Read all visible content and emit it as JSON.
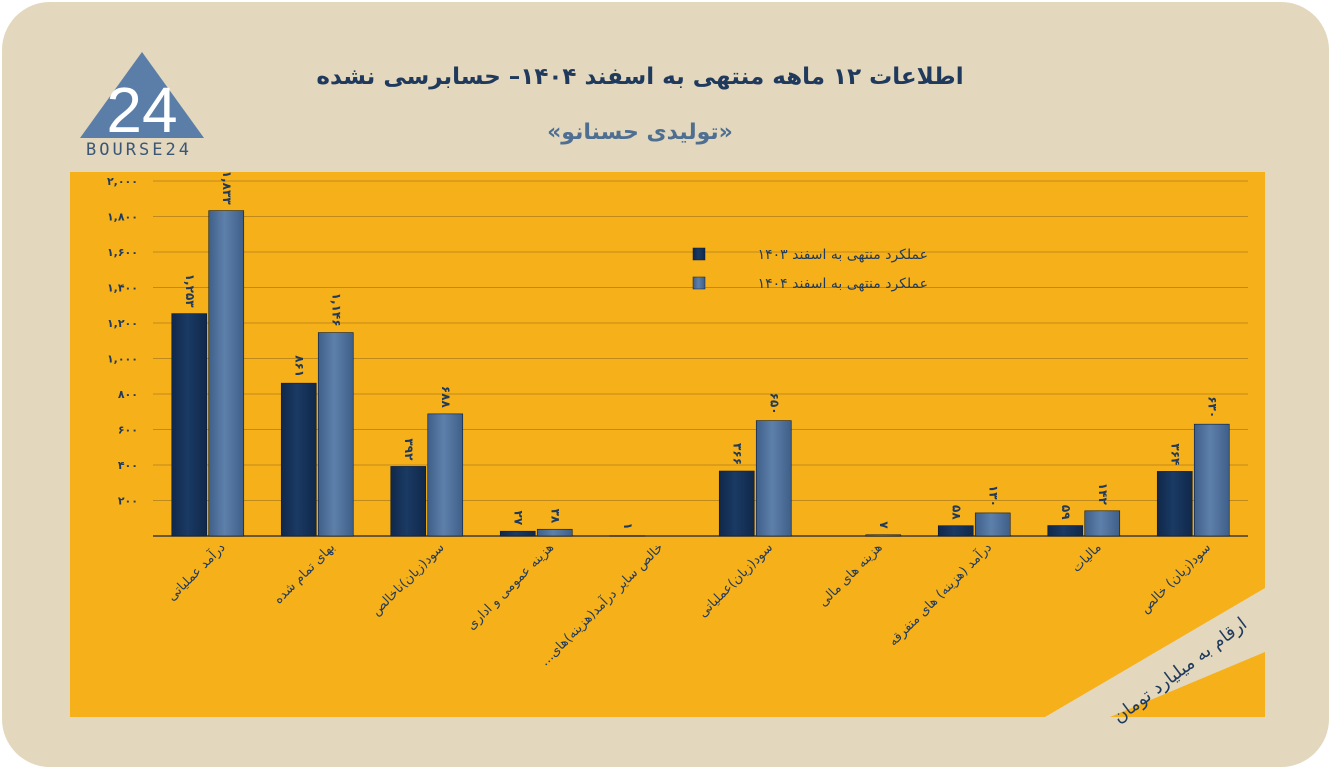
{
  "header": {
    "title": "اطلاعات ۱۲ ماهه منتهی به اسفند ۱۴۰۴– حسابرسی نشده",
    "subtitle": "«تولیدی حسنانو»"
  },
  "logo": {
    "numeral": "24",
    "text": "BOURSE24"
  },
  "units_note": "ارقام به میلیارد تومان",
  "colors": {
    "card_bg": "#e3d7bd",
    "panel_bg": "#f6b01a",
    "series_1403": "#1a3a64",
    "series_1404": "#5d80ab",
    "accent_text": "#1f3a5c"
  },
  "chart_data": {
    "type": "bar",
    "categories": [
      "درآمد عملیاتی",
      "بهای تمام شده",
      "سود(زیان)ناخالص",
      "هزینه عمومی و اداری",
      "خالص سایر درآمد(هزینه)های...",
      "سود(زیان)عملیاتی",
      "هزینه های مالی",
      "درآمد (هزینه) های متفرقه",
      "مالیات",
      "سود(زیان) خالص"
    ],
    "series": [
      {
        "name": "عملکرد منتهی به اسفند ۱۴۰۳",
        "values": [
          1253,
          861,
          392,
          27,
          1,
          366,
          0,
          58,
          59,
          364
        ],
        "labels": [
          "۱,۲۵۳",
          "۸۶۱",
          "۳۹۲",
          "۲۷",
          "۱",
          "۳۶۶",
          "",
          "۵۸",
          "۵۹",
          "۳۶۴"
        ]
      },
      {
        "name": "عملکرد منتهی به اسفند ۱۴۰۴",
        "values": [
          1833,
          1146,
          688,
          38,
          0,
          650,
          7,
          130,
          142,
          630
        ],
        "labels": [
          "۱,۸۳۳",
          "۱,۱۴۶",
          "۶۸۸",
          "۳۸",
          "",
          "۶۵۰",
          "۷",
          "۱۳۰",
          "۱۴۲",
          "۶۳۰"
        ]
      }
    ],
    "yticks": [
      200,
      400,
      600,
      800,
      1000,
      1200,
      1400,
      1600,
      1800,
      2000
    ],
    "ytick_labels": [
      "۲۰۰",
      "۴۰۰",
      "۶۰۰",
      "۸۰۰",
      "۱,۰۰۰",
      "۱,۲۰۰",
      "۱,۴۰۰",
      "۱,۶۰۰",
      "۱,۸۰۰",
      "۲,۰۰۰"
    ],
    "ylim": [
      0,
      2000
    ],
    "grid": true,
    "legend_position": "top-right"
  }
}
